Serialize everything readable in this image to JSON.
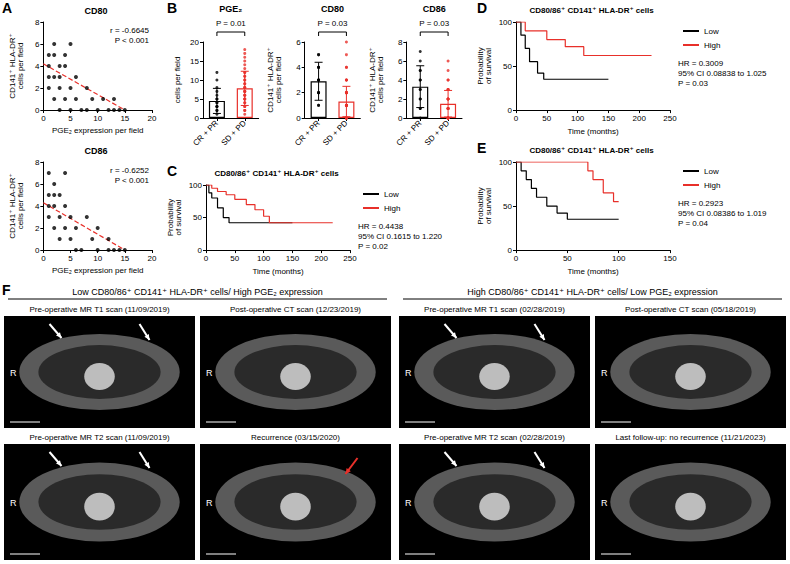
{
  "chart_data": [
    {
      "panel": "A",
      "type": "scatter",
      "title": "CD80",
      "x_label": "PGE₂ expression per field",
      "y_label": "CD141⁺ HLA-DR⁺ cells per field",
      "x": [
        1,
        1,
        1,
        1,
        2,
        2,
        2,
        2,
        3,
        3,
        3,
        3,
        4,
        4,
        4,
        5,
        5,
        5,
        6,
        6,
        7,
        8,
        8,
        9,
        10,
        11,
        12,
        13,
        13,
        14,
        15
      ],
      "values": [
        5,
        4,
        3,
        2,
        6,
        5,
        3,
        1,
        4,
        3,
        2,
        0,
        5,
        4,
        1,
        6,
        2,
        0,
        3,
        1,
        0,
        2,
        0,
        1,
        0,
        1,
        0,
        1,
        0,
        0,
        0
      ],
      "color": "#000000",
      "xlim": [
        0,
        20
      ],
      "xticks": [
        0,
        5,
        10,
        15,
        20
      ],
      "ylim": [
        0,
        8
      ],
      "yticks": [
        0,
        2,
        4,
        6,
        8
      ],
      "fit_line": {
        "x": [
          0,
          15
        ],
        "values": [
          4.2,
          0
        ],
        "color": "#e8302a",
        "line_style": "dashed"
      },
      "annotations": [
        "r = -0.6645",
        "P < 0.001"
      ]
    },
    {
      "type": "scatter",
      "title": "CD86",
      "x_label": "PGE₂ expression per field",
      "y_label": "CD141⁺ HLA-DR⁺ cells per field",
      "x": [
        1,
        1,
        1,
        1,
        2,
        2,
        2,
        2,
        3,
        3,
        3,
        4,
        4,
        4,
        5,
        5,
        6,
        6,
        7,
        8,
        9,
        10,
        10,
        12,
        12,
        13,
        14,
        15
      ],
      "values": [
        7,
        5,
        4,
        3,
        6,
        5,
        4,
        2,
        5,
        3,
        1,
        7,
        4,
        2,
        3,
        1,
        2,
        0,
        0,
        3,
        1,
        0,
        2,
        1,
        0,
        0,
        0,
        0
      ],
      "color": "#000000",
      "xlim": [
        0,
        20
      ],
      "xticks": [
        0,
        5,
        10,
        15,
        20
      ],
      "ylim": [
        0,
        8
      ],
      "yticks": [
        0,
        2,
        4,
        6,
        8
      ],
      "fit_line": {
        "x": [
          0,
          15
        ],
        "values": [
          4.3,
          0
        ],
        "color": "#e8302a",
        "line_style": "dashed"
      },
      "annotations": [
        "r = -0.6252",
        "P < 0.001"
      ]
    },
    {
      "panel": "B",
      "type": "bar",
      "subplots": [
        {
          "title": "PGE₂",
          "y_label": "cells per field",
          "categories": [
            "CR + PR",
            "SD + PD"
          ],
          "values": [
            4.5,
            7.8
          ],
          "errors": [
            3.3,
            4.5
          ],
          "colors": [
            "#000000",
            "#e8302a"
          ],
          "points": [
            [
              1,
              2,
              2,
              3,
              3,
              3,
              4,
              4,
              5,
              5,
              6,
              7,
              8,
              10,
              12
            ],
            [
              1,
              2,
              2,
              3,
              3,
              4,
              4,
              5,
              5,
              5,
              6,
              6,
              6,
              7,
              7,
              7,
              8,
              8,
              8,
              9,
              9,
              10,
              10,
              11,
              11,
              12,
              12,
              13,
              14,
              15,
              16,
              17,
              18
            ]
          ],
          "ylim": [
            0,
            20
          ],
          "yticks": [
            0,
            5,
            10,
            15,
            20
          ],
          "annotation": "P = 0.01"
        },
        {
          "title": "CD80",
          "y_label": "CD141⁺ HLA-DR⁺ cells per field",
          "categories": [
            "CR + PR",
            "SD + PD"
          ],
          "values": [
            2.9,
            1.3
          ],
          "errors": [
            1.5,
            1.2
          ],
          "colors": [
            "#000000",
            "#e8302a"
          ],
          "points": [
            [
              1,
              1,
              2,
              2,
              2,
              3,
              3,
              3,
              3,
              4,
              4,
              4,
              5,
              5
            ],
            [
              0,
              0,
              0,
              0,
              0,
              0,
              0,
              0,
              1,
              1,
              1,
              1,
              1,
              1,
              1,
              2,
              2,
              2,
              2,
              2,
              3,
              3,
              3,
              4,
              4,
              5,
              6
            ]
          ],
          "ylim": [
            0,
            6
          ],
          "yticks": [
            0,
            2,
            4,
            6
          ],
          "annotation": "P = 0.03"
        },
        {
          "title": "CD86",
          "y_label": "CD141⁺ HLA-DR⁺ cells per field",
          "categories": [
            "CR + PR",
            "SD + PD"
          ],
          "values": [
            3.3,
            1.5
          ],
          "errors": [
            2.2,
            1.4
          ],
          "colors": [
            "#000000",
            "#e8302a"
          ],
          "points": [
            [
              0,
              1,
              1,
              2,
              2,
              3,
              3,
              4,
              4,
              5,
              5,
              6,
              7
            ],
            [
              0,
              0,
              0,
              0,
              0,
              0,
              0,
              0,
              1,
              1,
              1,
              1,
              1,
              2,
              2,
              2,
              2,
              3,
              3,
              3,
              4,
              4,
              5,
              6
            ]
          ],
          "ylim": [
            0,
            8
          ],
          "yticks": [
            0,
            2,
            4,
            6,
            8
          ],
          "annotation": "P = 0.03"
        }
      ]
    },
    {
      "panel": "C",
      "type": "line",
      "line_style": "step",
      "title": "CD80/86⁺ CD141⁺ HLA-DR⁺ cells",
      "x_label": "Time (months)",
      "y_label": "Probability of survival",
      "series": [
        {
          "name": "Low",
          "color": "#000000",
          "x": [
            0,
            5,
            10,
            20,
            30,
            40,
            150
          ],
          "values": [
            100,
            88,
            80,
            65,
            50,
            42,
            42
          ]
        },
        {
          "name": "High",
          "color": "#e8302a",
          "x": [
            0,
            10,
            20,
            35,
            50,
            70,
            85,
            100,
            110,
            220
          ],
          "values": [
            100,
            95,
            90,
            85,
            78,
            70,
            62,
            52,
            42,
            42
          ]
        }
      ],
      "xlim": [
        0,
        250
      ],
      "xticks": [
        0,
        50,
        100,
        150,
        200,
        250
      ],
      "ylim": [
        0,
        100
      ],
      "yticks": [
        0,
        50,
        100
      ],
      "legend": "right",
      "annotations": [
        "HR = 0.4438",
        "95% CI 0.1615 to 1.220",
        "P = 0.02"
      ]
    },
    {
      "panel": "D",
      "type": "line",
      "line_style": "step",
      "title": "CD80/86⁺ CD141⁺ HLA-DR⁺ cells",
      "x_label": "Time (months)",
      "y_label": "Probability of survival",
      "series": [
        {
          "name": "Low",
          "color": "#000000",
          "x": [
            0,
            8,
            15,
            22,
            35,
            45,
            150
          ],
          "values": [
            100,
            85,
            70,
            55,
            42,
            35,
            35
          ]
        },
        {
          "name": "High",
          "color": "#e8302a",
          "x": [
            0,
            15,
            50,
            80,
            110,
            220
          ],
          "values": [
            100,
            90,
            80,
            72,
            62,
            62
          ]
        }
      ],
      "xlim": [
        0,
        250
      ],
      "xticks": [
        0,
        50,
        100,
        150,
        200,
        250
      ],
      "ylim": [
        0,
        100
      ],
      "yticks": [
        0,
        50,
        100
      ],
      "legend": "right",
      "annotations": [
        "HR = 0.3009",
        "95% CI 0.08838 to 1.025",
        "P = 0.03"
      ]
    },
    {
      "panel": "E",
      "type": "line",
      "line_style": "step",
      "title": "CD80/86⁺ CD141⁺ HLA-DR⁺ cells",
      "x_label": "Time (months)",
      "y_label": "Probability of survival",
      "series": [
        {
          "name": "Low",
          "color": "#000000",
          "x": [
            0,
            5,
            10,
            15,
            20,
            30,
            40,
            50,
            100
          ],
          "values": [
            100,
            90,
            80,
            70,
            60,
            50,
            42,
            35,
            35
          ]
        },
        {
          "name": "High",
          "color": "#e8302a",
          "x": [
            0,
            70,
            75,
            85,
            95,
            100
          ],
          "values": [
            100,
            90,
            80,
            65,
            55,
            55
          ]
        }
      ],
      "xlim": [
        0,
        150
      ],
      "xticks": [
        0,
        50,
        100,
        150
      ],
      "ylim": [
        0,
        100
      ],
      "yticks": [
        0,
        50,
        100
      ],
      "legend": "right",
      "annotations": [
        "HR = 0.2923",
        "95% CI 0.08386 to 1.019",
        "P = 0.04"
      ]
    }
  ],
  "images": {
    "panel": "F",
    "groups": [
      {
        "title": "Low CD80/86⁺ CD141⁺ HLA-DR⁺ cells/ High PGE₂ expression",
        "images": [
          {
            "caption": "Pre-operative MR T1 scan (11/09/2019)",
            "label": "R"
          },
          {
            "caption": "Post-operative CT scan (12/23/2019)",
            "label": "R"
          },
          {
            "caption": "Pre-operative MR T2 scan (11/09/2019)",
            "label": "R"
          },
          {
            "caption": "Recurrence (03/15/2020)",
            "label": "R"
          }
        ]
      },
      {
        "title": "High CD80/86⁺ CD141⁺ HLA-DR⁺ cells/ Low PGE₂ expression",
        "images": [
          {
            "caption": "Pre-operative MR T1 scan (02/28/2019)",
            "label": "R"
          },
          {
            "caption": "Post-operative CT scan (05/18/2019)",
            "label": "R"
          },
          {
            "caption": "Pre-operative MR T2 scan (02/28/2019)",
            "label": "R"
          },
          {
            "caption": "Last follow-up: no recurrence (11/21/2023)",
            "label": "R"
          }
        ]
      }
    ]
  }
}
